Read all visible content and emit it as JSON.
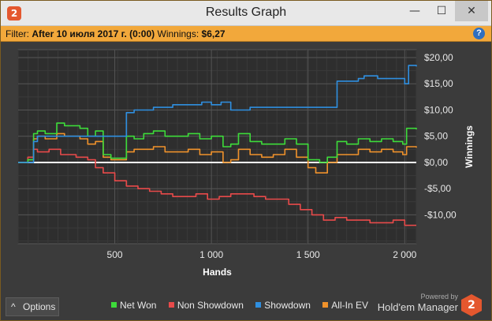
{
  "window": {
    "title": "Results Graph",
    "app_icon": "2",
    "controls": {
      "minimize": "—",
      "maximize": "☐",
      "close": "✕"
    }
  },
  "filter": {
    "label": "Filter:",
    "value": "After 10 июля 2017 г. (0:00)",
    "winnings_label": "Winnings:",
    "winnings_value": "$6,27",
    "help": "?"
  },
  "colors": {
    "net_won": "#3ddc3a",
    "non_showdown": "#e84a4a",
    "showdown": "#2f8fe0",
    "all_in_ev": "#f0922b",
    "zero_line": "#ffffff"
  },
  "chart_data": {
    "type": "line",
    "xlabel": "Hands",
    "ylabel": "Winnings",
    "xlim": [
      0,
      2060
    ],
    "ylim": [
      -15.5,
      21.5
    ],
    "x_ticks": [
      500,
      1000,
      1500,
      2000
    ],
    "x_tick_labels": [
      "500",
      "1 000",
      "1 500",
      "2 000"
    ],
    "y_ticks": [
      20,
      15,
      10,
      5,
      0,
      -5,
      -10
    ],
    "y_tick_labels": [
      "$20,00",
      "$15,00",
      "$10,00",
      "$5,00",
      "$0,00",
      "-$5,00",
      "-$10,00"
    ],
    "series": [
      {
        "name": "Net Won",
        "x": [
          0,
          50,
          80,
          100,
          140,
          200,
          240,
          320,
          360,
          400,
          440,
          480,
          520,
          560,
          600,
          650,
          700,
          760,
          820,
          880,
          940,
          1000,
          1060,
          1100,
          1140,
          1200,
          1260,
          1320,
          1380,
          1440,
          1500,
          1560,
          1600,
          1650,
          1700,
          1760,
          1820,
          1880,
          1940,
          1990,
          2010,
          2060
        ],
        "values": [
          0,
          0.5,
          5.5,
          6.0,
          5.5,
          7.5,
          7.0,
          6.5,
          5.0,
          6.0,
          1.5,
          0.8,
          0.8,
          5.0,
          4.5,
          5.5,
          6.0,
          5.0,
          5.0,
          5.5,
          4.5,
          5.0,
          3.0,
          3.5,
          5.5,
          4.0,
          3.5,
          3.5,
          4.5,
          3.5,
          0.5,
          0.0,
          1.0,
          4.0,
          3.5,
          4.5,
          4.0,
          4.5,
          4.0,
          3.5,
          6.5,
          6.3
        ]
      },
      {
        "name": "Non Showdown",
        "x": [
          0,
          50,
          80,
          100,
          160,
          220,
          300,
          360,
          400,
          440,
          500,
          560,
          620,
          680,
          740,
          800,
          860,
          920,
          980,
          1040,
          1100,
          1160,
          1220,
          1280,
          1340,
          1400,
          1460,
          1520,
          1580,
          1640,
          1700,
          1760,
          1820,
          1880,
          1940,
          2000,
          2060
        ],
        "values": [
          0,
          1.0,
          2.5,
          2.0,
          2.5,
          1.5,
          1.0,
          0.5,
          -1.0,
          -2.0,
          -3.5,
          -4.5,
          -5.0,
          -5.5,
          -6.0,
          -6.5,
          -6.5,
          -6.0,
          -7.0,
          -6.5,
          -6.0,
          -6.0,
          -6.5,
          -7.0,
          -7.0,
          -8.0,
          -9.0,
          -10.0,
          -11.0,
          -10.5,
          -11.0,
          -11.0,
          -11.5,
          -11.5,
          -11.0,
          -12.0,
          -12.0
        ]
      },
      {
        "name": "Showdown",
        "x": [
          0,
          80,
          100,
          440,
          520,
          560,
          600,
          700,
          800,
          900,
          950,
          1000,
          1050,
          1100,
          1200,
          1350,
          1600,
          1650,
          1700,
          1760,
          1790,
          1860,
          1960,
          2000,
          2020,
          2060
        ],
        "values": [
          0,
          4.0,
          5.0,
          5.0,
          5.0,
          9.5,
          10.0,
          10.5,
          11.0,
          11.0,
          11.5,
          11.0,
          11.5,
          10.0,
          10.5,
          10.5,
          10.5,
          15.5,
          15.5,
          16.0,
          16.5,
          16.0,
          16.0,
          15.0,
          18.5,
          18.3
        ]
      },
      {
        "name": "All-In EV",
        "x": [
          0,
          50,
          80,
          100,
          140,
          200,
          240,
          320,
          360,
          400,
          440,
          480,
          520,
          560,
          600,
          650,
          700,
          760,
          820,
          880,
          940,
          1000,
          1060,
          1100,
          1140,
          1200,
          1260,
          1320,
          1380,
          1440,
          1500,
          1540,
          1600,
          1650,
          1700,
          1760,
          1820,
          1880,
          1940,
          1990,
          2010,
          2060
        ],
        "values": [
          0,
          0.5,
          4.5,
          5.0,
          4.5,
          5.5,
          5.0,
          4.5,
          3.5,
          4.0,
          1.0,
          0.5,
          0.5,
          2.0,
          2.5,
          2.5,
          3.0,
          2.0,
          2.0,
          2.5,
          1.5,
          2.0,
          0.0,
          0.5,
          2.5,
          1.5,
          1.0,
          1.5,
          2.5,
          1.0,
          -1.0,
          -2.0,
          0.0,
          1.5,
          1.5,
          2.5,
          2.0,
          2.5,
          2.0,
          1.5,
          3.0,
          2.8
        ]
      }
    ]
  },
  "legend": [
    {
      "label": "Net Won",
      "color": "#3ddc3a"
    },
    {
      "label": "Non Showdown",
      "color": "#e84a4a"
    },
    {
      "label": "Showdown",
      "color": "#2f8fe0"
    },
    {
      "label": "All-In EV",
      "color": "#f0922b"
    }
  ],
  "options": {
    "label": "Options",
    "icon": "^"
  },
  "brand": {
    "powered": "Powered by",
    "name": "Hold'em Manager",
    "logo": "2"
  }
}
